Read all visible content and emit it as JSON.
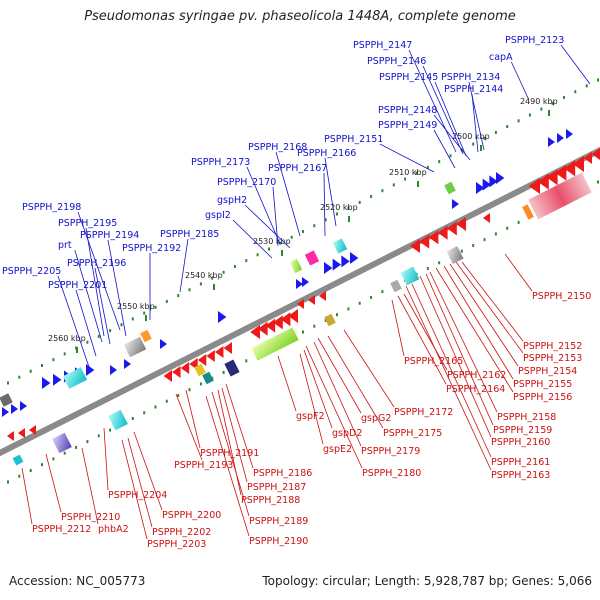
{
  "title": "Pseudomonas syringae pv. phaseolicola 1448A, complete genome",
  "footer": {
    "accession": "Accession: NC_005773",
    "topology": "Topology: circular; Length: 5,928,787 bp; Genes: 5,066"
  },
  "colors": {
    "forward_label": "#1111cc",
    "reverse_label": "#cc1111",
    "forward_arrow": "#1a1aee",
    "reverse_arrow": "#ee1a1a",
    "backbone": "#8a8a8a",
    "tick": "#2a8a2a"
  },
  "kbp_ticks": [
    "2490 kbp",
    "2500 kbp",
    "2510 kbp",
    "2520 kbp",
    "2530 kbp",
    "2540 kbp",
    "2550 kbp",
    "2560 kbp"
  ],
  "forward_labels": [
    "PSPPH_2147",
    "PSPPH_2123",
    "PSPPH_2146",
    "capA",
    "PSPPH_2145",
    "PSPPH_2134",
    "PSPPH_2144",
    "PSPPH_2148",
    "PSPPH_2149",
    "PSPPH_2151",
    "PSPPH_2168",
    "PSPPH_2166",
    "PSPPH_2173",
    "PSPPH_2167",
    "PSPPH_2170",
    "gspH2",
    "gspI2",
    "PSPPH_2198",
    "PSPPH_2195",
    "prt",
    "PSPPH_2194",
    "PSPPH_2185",
    "PSPPH_2192",
    "PSPPH_2196",
    "PSPPH_2205",
    "PSPPH_2201"
  ],
  "reverse_labels": [
    "PSPPH_2150",
    "PSPPH_2152",
    "PSPPH_2153",
    "PSPPH_2165",
    "PSPPH_2154",
    "PSPPH_2162",
    "PSPPH_2155",
    "PSPPH_2164",
    "PSPPH_2156",
    "PSPPH_2172",
    "PSPPH_2158",
    "gspF2",
    "gspG2",
    "gspD2",
    "PSPPH_2159",
    "PSPPH_2175",
    "PSPPH_2160",
    "gspE2",
    "PSPPH_2179",
    "PSPPH_2191",
    "PSPPH_2193",
    "PSPPH_2161",
    "PSPPH_2180",
    "PSPPH_2186",
    "PSPPH_2163",
    "PSPPH_2187",
    "PSPPH_2188",
    "PSPPH_2204",
    "PSPPH_2200",
    "PSPPH_2210",
    "PSPPH_2189",
    "PSPPH_2212",
    "phbA2",
    "PSPPH_2202",
    "PSPPH_2203",
    "PSPPH_2190"
  ]
}
